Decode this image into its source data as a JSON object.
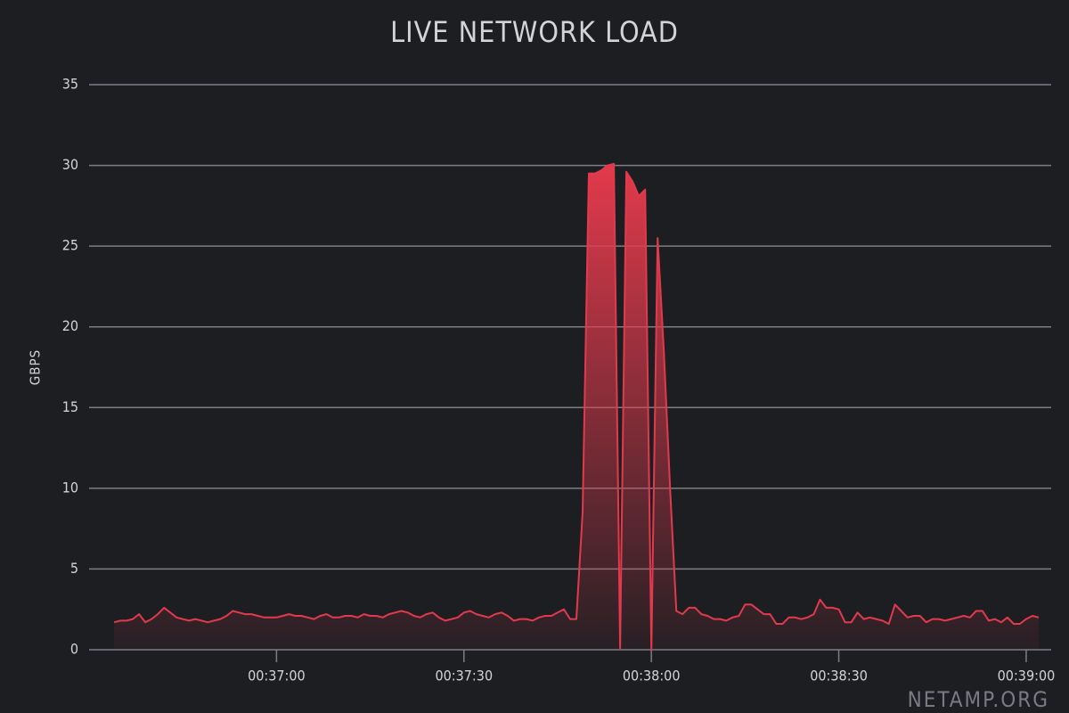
{
  "chart_data": {
    "type": "area",
    "title": "LIVE NETWORK LOAD",
    "y_label": "GBPS",
    "watermark": "NETAMP.ORG",
    "color": "#e23a4c",
    "grid": true,
    "xlim": [
      "00:36:30",
      "00:39:04"
    ],
    "xticks": [
      "00:37:00",
      "00:37:30",
      "00:38:00",
      "00:38:30",
      "00:39:00"
    ],
    "ylim": [
      0,
      35
    ],
    "yticks": [
      0,
      5,
      10,
      15,
      20,
      25,
      30,
      35
    ],
    "x": [
      "00:36:34",
      "00:36:35",
      "00:36:36",
      "00:36:37",
      "00:36:38",
      "00:36:39",
      "00:36:40",
      "00:36:41",
      "00:36:42",
      "00:36:43",
      "00:36:44",
      "00:36:45",
      "00:36:46",
      "00:36:47",
      "00:36:48",
      "00:36:49",
      "00:36:50",
      "00:36:51",
      "00:36:52",
      "00:36:53",
      "00:36:54",
      "00:36:55",
      "00:36:56",
      "00:36:57",
      "00:36:58",
      "00:36:59",
      "00:37:00",
      "00:37:01",
      "00:37:02",
      "00:37:03",
      "00:37:04",
      "00:37:05",
      "00:37:06",
      "00:37:07",
      "00:37:08",
      "00:37:09",
      "00:37:10",
      "00:37:11",
      "00:37:12",
      "00:37:13",
      "00:37:14",
      "00:37:15",
      "00:37:16",
      "00:37:17",
      "00:37:18",
      "00:37:19",
      "00:37:20",
      "00:37:21",
      "00:37:22",
      "00:37:23",
      "00:37:24",
      "00:37:25",
      "00:37:26",
      "00:37:27",
      "00:37:28",
      "00:37:29",
      "00:37:30",
      "00:37:31",
      "00:37:32",
      "00:37:33",
      "00:37:34",
      "00:37:35",
      "00:37:36",
      "00:37:37",
      "00:37:38",
      "00:37:39",
      "00:37:40",
      "00:37:41",
      "00:37:42",
      "00:37:43",
      "00:37:44",
      "00:37:45",
      "00:37:46",
      "00:37:47",
      "00:37:48",
      "00:37:49",
      "00:37:50",
      "00:37:51",
      "00:37:52",
      "00:37:53",
      "00:37:54",
      "00:37:55",
      "00:37:56",
      "00:37:57",
      "00:37:58",
      "00:37:59",
      "00:38:00",
      "00:38:01",
      "00:38:02",
      "00:38:03",
      "00:38:04",
      "00:38:05",
      "00:38:06",
      "00:38:07",
      "00:38:08",
      "00:38:09",
      "00:38:10",
      "00:38:11",
      "00:38:12",
      "00:38:13",
      "00:38:14",
      "00:38:15",
      "00:38:16",
      "00:38:17",
      "00:38:18",
      "00:38:19",
      "00:38:20",
      "00:38:21",
      "00:38:22",
      "00:38:23",
      "00:38:24",
      "00:38:25",
      "00:38:26",
      "00:38:27",
      "00:38:28",
      "00:38:29",
      "00:38:30",
      "00:38:31",
      "00:38:32",
      "00:38:33",
      "00:38:34",
      "00:38:35",
      "00:38:36",
      "00:38:37",
      "00:38:38",
      "00:38:39",
      "00:38:40",
      "00:38:41",
      "00:38:42",
      "00:38:43",
      "00:38:44",
      "00:38:45",
      "00:38:46",
      "00:38:47",
      "00:38:48",
      "00:38:49",
      "00:38:50",
      "00:38:51",
      "00:38:52",
      "00:38:53",
      "00:38:54",
      "00:38:55",
      "00:38:56",
      "00:38:57",
      "00:38:58",
      "00:38:59",
      "00:39:00",
      "00:39:01",
      "00:39:02"
    ],
    "values": [
      1.7,
      1.8,
      1.8,
      1.9,
      2.2,
      1.7,
      1.9,
      2.2,
      2.6,
      2.3,
      2.0,
      1.9,
      1.8,
      1.9,
      1.8,
      1.7,
      1.8,
      1.9,
      2.1,
      2.4,
      2.3,
      2.2,
      2.2,
      2.1,
      2.0,
      2.0,
      2.0,
      2.1,
      2.2,
      2.1,
      2.1,
      2.0,
      1.9,
      2.1,
      2.2,
      2.0,
      2.0,
      2.1,
      2.1,
      2.0,
      2.2,
      2.1,
      2.1,
      2.0,
      2.2,
      2.3,
      2.4,
      2.3,
      2.1,
      2.0,
      2.2,
      2.3,
      2.0,
      1.8,
      1.9,
      2.0,
      2.3,
      2.4,
      2.2,
      2.1,
      2.0,
      2.2,
      2.3,
      2.1,
      1.8,
      1.9,
      1.9,
      1.8,
      2.0,
      2.1,
      2.1,
      2.3,
      2.5,
      1.9,
      1.9,
      8.5,
      29.5,
      29.5,
      29.7,
      30.0,
      30.1,
      0.1,
      29.6,
      29.0,
      28.1,
      28.5,
      0,
      25.5,
      18.5,
      10,
      2.4,
      2.2,
      2.6,
      2.6,
      2.2,
      2.1,
      1.9,
      1.9,
      1.8,
      2.0,
      2.1,
      2.8,
      2.8,
      2.5,
      2.2,
      2.2,
      1.6,
      1.6,
      2.0,
      2.0,
      1.9,
      2.0,
      2.2,
      3.1,
      2.6,
      2.6,
      2.5,
      1.7,
      1.7,
      2.3,
      1.9,
      2.0,
      1.9,
      1.8,
      1.6,
      2.8,
      2.4,
      2.0,
      2.1,
      2.1,
      1.7,
      1.9,
      1.9,
      1.8,
      1.9,
      2.0,
      2.1,
      2.0,
      2.4,
      2.4,
      1.8,
      1.9,
      1.7,
      2.0,
      1.6,
      1.6,
      1.9,
      2.1,
      2.0
    ]
  }
}
